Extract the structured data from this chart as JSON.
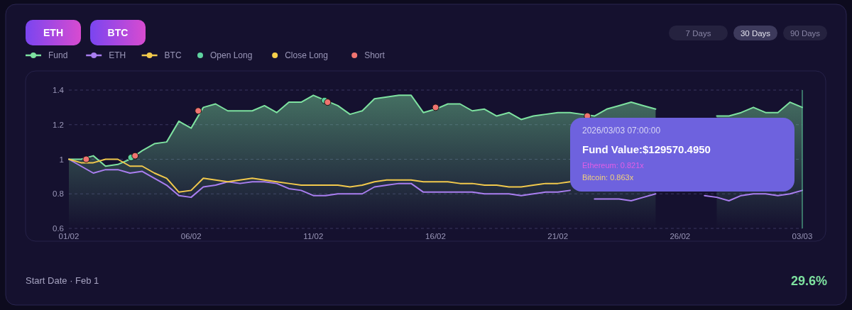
{
  "chart_data": {
    "type": "line",
    "annotations": [
      "ETH",
      "BTC",
      "7 Days",
      "30 Days",
      "90 Days",
      "2026/03/03 07:00:00",
      "Fund Value:$129570.4950",
      "Ethereum: 0.821x",
      "Bitcoin: 0.863x",
      "Start Date · Feb 1",
      "29.6%"
    ],
    "x": [
      "2026-02-01T00:00",
      "2026-02-01T12:00",
      "2026-02-02T00:00",
      "2026-02-02T12:00",
      "2026-02-03T00:00",
      "2026-02-03T12:00",
      "2026-02-04T00:00",
      "2026-02-04T12:00",
      "2026-02-05T00:00",
      "2026-02-05T12:00",
      "2026-02-06T00:00",
      "2026-02-06T12:00",
      "2026-02-07T00:00",
      "2026-02-07T12:00",
      "2026-02-08T00:00",
      "2026-02-08T12:00",
      "2026-02-09T00:00",
      "2026-02-09T12:00",
      "2026-02-10T00:00",
      "2026-02-10T12:00",
      "2026-02-11T00:00",
      "2026-02-11T12:00",
      "2026-02-12T00:00",
      "2026-02-12T12:00",
      "2026-02-13T00:00",
      "2026-02-13T12:00",
      "2026-02-14T00:00",
      "2026-02-14T12:00",
      "2026-02-15T00:00",
      "2026-02-15T12:00",
      "2026-02-16T00:00",
      "2026-02-16T12:00",
      "2026-02-17T00:00",
      "2026-02-17T12:00",
      "2026-02-18T00:00",
      "2026-02-18T12:00",
      "2026-02-19T00:00",
      "2026-02-19T12:00",
      "2026-02-20T00:00",
      "2026-02-20T12:00",
      "2026-02-21T00:00",
      "2026-02-21T12:00",
      "2026-02-22T00:00",
      "2026-02-22T12:00",
      "2026-02-23T00:00",
      "2026-02-23T12:00",
      "2026-02-24T00:00",
      "2026-02-24T12:00",
      "2026-02-25T00:00",
      "2026-02-25T12:00",
      "2026-02-26T00:00",
      "2026-02-26T12:00",
      "2026-02-27T00:00",
      "2026-02-27T12:00",
      "2026-02-28T00:00",
      "2026-02-28T12:00",
      "2026-03-01T00:00",
      "2026-03-01T12:00",
      "2026-03-02T00:00",
      "2026-03-02T12:00",
      "2026-03-03T00:00"
    ],
    "series": [
      {
        "name": "Fund",
        "type": "area",
        "color": "#7ee2a0",
        "values": [
          1.0,
          1.0,
          1.02,
          0.96,
          0.97,
          1.0,
          1.05,
          1.09,
          1.1,
          1.22,
          1.18,
          1.3,
          1.32,
          1.28,
          1.28,
          1.28,
          1.31,
          1.27,
          1.33,
          1.33,
          1.37,
          1.34,
          1.31,
          1.26,
          1.28,
          1.35,
          1.36,
          1.37,
          1.37,
          1.27,
          1.29,
          1.32,
          1.32,
          1.28,
          1.29,
          1.25,
          1.27,
          1.23,
          1.25,
          1.26,
          1.27,
          1.27,
          1.26,
          1.25,
          1.29,
          1.31,
          1.33,
          1.31,
          1.29,
          null,
          null,
          null,
          null,
          1.25,
          1.25,
          1.27,
          1.3,
          1.27,
          1.27,
          1.33,
          1.3
        ]
      },
      {
        "name": "ETH",
        "color": "#a97ef0",
        "values": [
          1.0,
          0.96,
          0.92,
          0.94,
          0.94,
          0.92,
          0.93,
          0.89,
          0.85,
          0.79,
          0.78,
          0.84,
          0.85,
          0.87,
          0.86,
          0.87,
          0.87,
          0.86,
          0.83,
          0.82,
          0.79,
          0.79,
          0.8,
          0.8,
          0.8,
          0.84,
          0.85,
          0.86,
          0.86,
          0.81,
          0.81,
          0.81,
          0.81,
          0.81,
          0.8,
          0.8,
          0.8,
          0.79,
          0.8,
          0.81,
          0.81,
          0.82,
          null,
          0.77,
          0.77,
          0.77,
          0.76,
          0.78,
          0.8,
          null,
          null,
          null,
          0.79,
          0.78,
          0.76,
          0.79,
          0.8,
          0.8,
          0.79,
          0.8,
          0.82
        ]
      },
      {
        "name": "BTC",
        "color": "#f2c94c",
        "values": [
          1.0,
          0.98,
          0.98,
          1.0,
          1.0,
          0.96,
          0.96,
          0.92,
          0.89,
          0.81,
          0.82,
          0.89,
          0.88,
          0.87,
          0.88,
          0.89,
          0.88,
          0.87,
          0.86,
          0.85,
          0.85,
          0.85,
          0.85,
          0.84,
          0.85,
          0.87,
          0.88,
          0.88,
          0.88,
          0.87,
          0.87,
          0.87,
          0.86,
          0.86,
          0.85,
          0.85,
          0.84,
          0.84,
          0.85,
          0.86,
          0.86,
          0.87,
          null,
          null,
          null,
          null,
          null,
          null,
          null,
          null,
          null,
          null,
          null,
          null,
          null,
          null,
          null,
          null,
          null,
          null,
          null
        ]
      },
      {
        "name": "Open Long",
        "type": "scatter",
        "marker": "circle",
        "color": "#5fd3a0",
        "x": [
          "2026-02-03T13:00",
          "2026-02-11T11:00"
        ],
        "values": [
          1.01,
          1.34
        ]
      },
      {
        "name": "Close Long",
        "type": "scatter",
        "marker": "circle",
        "color": "#f5cf4a",
        "values": [
          null,
          null,
          null,
          null,
          null,
          null,
          null,
          null,
          null,
          null,
          null,
          null,
          null,
          null,
          null,
          null,
          null,
          null,
          null,
          null,
          null,
          null,
          null,
          null,
          null,
          null,
          null,
          null,
          null,
          null,
          null,
          null,
          null,
          null,
          null,
          null,
          null,
          null,
          null,
          null,
          null,
          null,
          null,
          null,
          null,
          null,
          null,
          null,
          null,
          null,
          null,
          null,
          null,
          null,
          null,
          null,
          null,
          null,
          null,
          null,
          null
        ]
      },
      {
        "name": "Short",
        "type": "scatter",
        "marker": "circle",
        "color": "#f07470",
        "x": [
          "2026-02-01T17:00",
          "2026-02-03T17:00",
          "2026-02-06T07:00",
          "2026-02-11T14:00",
          "2026-02-16T00:00",
          "2026-02-22T05:00"
        ],
        "values": [
          1.0,
          1.02,
          1.28,
          1.33,
          1.3,
          1.25
        ]
      }
    ],
    "xlim": [
      "2026-02-01",
      "2026-03-03"
    ],
    "xticks": [
      {
        "value": "2026-02-01",
        "label": "01/02"
      },
      {
        "value": "2026-02-06",
        "label": "06/02"
      },
      {
        "value": "2026-02-11",
        "label": "11/02"
      },
      {
        "value": "2026-02-16",
        "label": "16/02"
      },
      {
        "value": "2026-02-21",
        "label": "21/02"
      },
      {
        "value": "2026-02-26",
        "label": "26/02"
      },
      {
        "value": "2026-03-03",
        "label": "03/03"
      }
    ],
    "ylim": [
      0.6,
      1.4
    ],
    "yticks": [
      0.6,
      0.8,
      {
        "value": 1,
        "label": "1"
      },
      1.2,
      1.4
    ],
    "ref_lines": [
      {
        "axis": "x",
        "value": "2026-03-03",
        "color": "#5fd3a0"
      }
    ],
    "grid": "y",
    "legend": "top left"
  }
}
